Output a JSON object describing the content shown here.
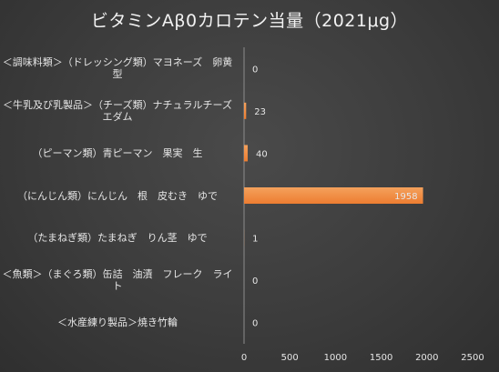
{
  "chart_data": {
    "type": "bar",
    "orientation": "horizontal",
    "title": "ビタミンAβ0カロテン当量（2021μg）",
    "categories": [
      "＜調味料類＞（ドレッシング類）マヨネーズ　卵黄型",
      "＜牛乳及び乳製品＞（チーズ類）ナチュラルチーズ　エダム",
      "（ピーマン類）青ピーマン　果実　生",
      "（にんじん類）にんじん　根　皮むき　ゆで",
      "（たまねぎ類）たまねぎ　りん茎　ゆで",
      "＜魚類＞（まぐろ類）缶詰　油漬　フレーク　ライト",
      "＜水産練り製品＞焼き竹輪"
    ],
    "values": [
      0,
      23,
      40,
      1958,
      1,
      0,
      0
    ],
    "data_labels": [
      "0",
      "23",
      "40",
      "1958",
      "1",
      "0",
      "0"
    ],
    "xlim": [
      0,
      2500
    ],
    "xticks": [
      "0",
      "500",
      "1000",
      "1500",
      "2000",
      "2500"
    ],
    "grid": false,
    "legend": "none",
    "colors": {
      "bar": "#ed7d31",
      "bar_highlight": "#f4a15c",
      "text": "#e6e6e6",
      "axis": "#8c8c8c"
    }
  }
}
